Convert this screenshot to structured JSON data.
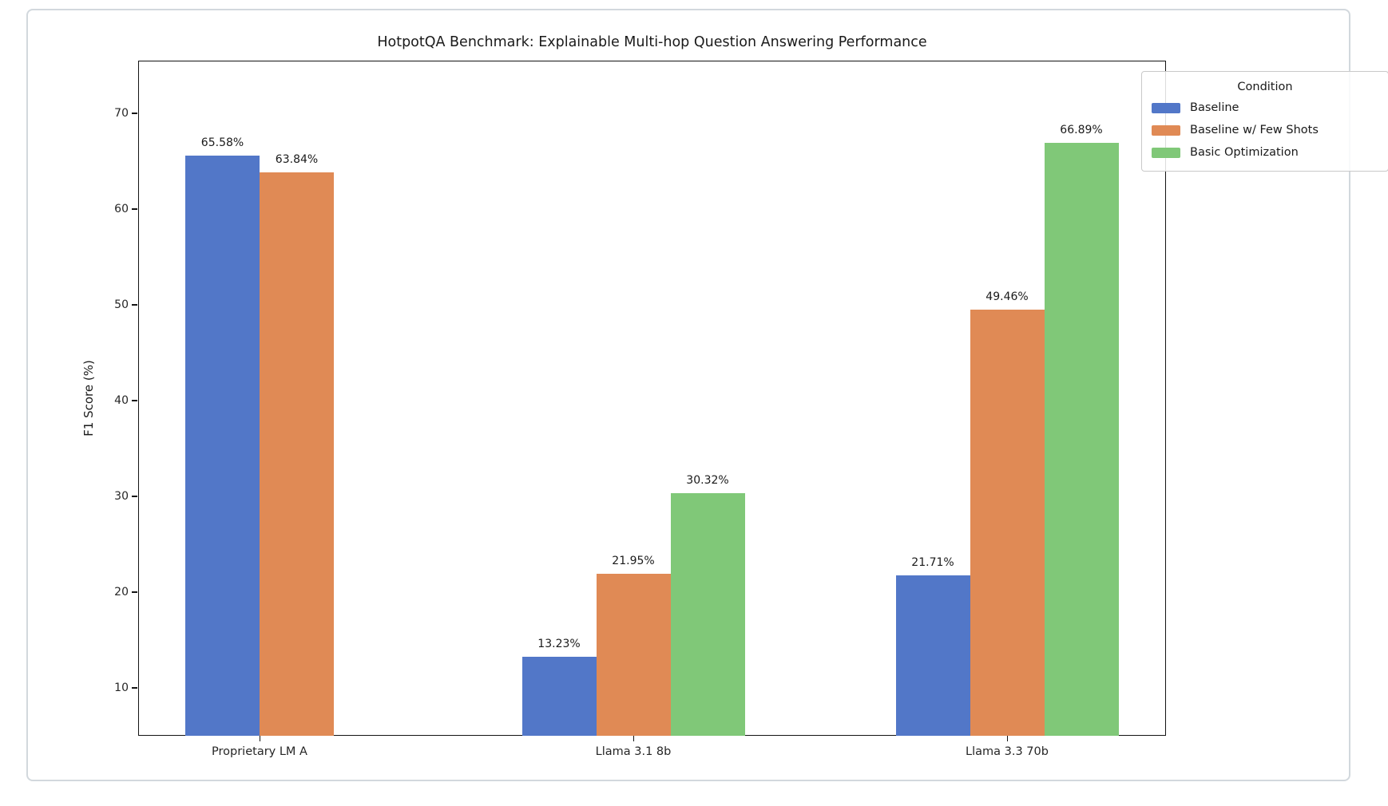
{
  "chart_data": {
    "type": "bar",
    "title": "HotpotQA Benchmark: Explainable Multi-hop Question Answering Performance",
    "xlabel": "",
    "ylabel": "F1 Score (%)",
    "categories": [
      "Proprietary LM A",
      "Llama 3.1 8b",
      "Llama 3.3 70b"
    ],
    "series": [
      {
        "name": "Baseline",
        "color": "#5277c8",
        "values": [
          65.58,
          13.23,
          21.71
        ]
      },
      {
        "name": "Baseline w/ Few Shots",
        "color": "#e08a55",
        "values": [
          63.84,
          21.95,
          49.46
        ]
      },
      {
        "name": "Basic Optimization",
        "color": "#80c878",
        "values": [
          null,
          30.32,
          66.89
        ]
      }
    ],
    "bar_value_labels": [
      [
        "65.58%",
        "13.23%",
        "21.71%"
      ],
      [
        "63.84%",
        "21.95%",
        "49.46%"
      ],
      [
        null,
        "30.32%",
        "66.89%"
      ]
    ],
    "value_label_format": "{:.2f}%",
    "yticks": [
      10,
      20,
      30,
      40,
      50,
      60,
      70
    ],
    "ylim": [
      5,
      75.5
    ],
    "grid": false,
    "legend": {
      "title": "Condition",
      "position": "upper right"
    },
    "colors": {
      "baseline_blue": "#5277c8",
      "few_shots_orange": "#e08a55",
      "optimization_green": "#80c878",
      "spine_black": "#141414",
      "panel_border_gray": "#d2d8dd"
    }
  }
}
